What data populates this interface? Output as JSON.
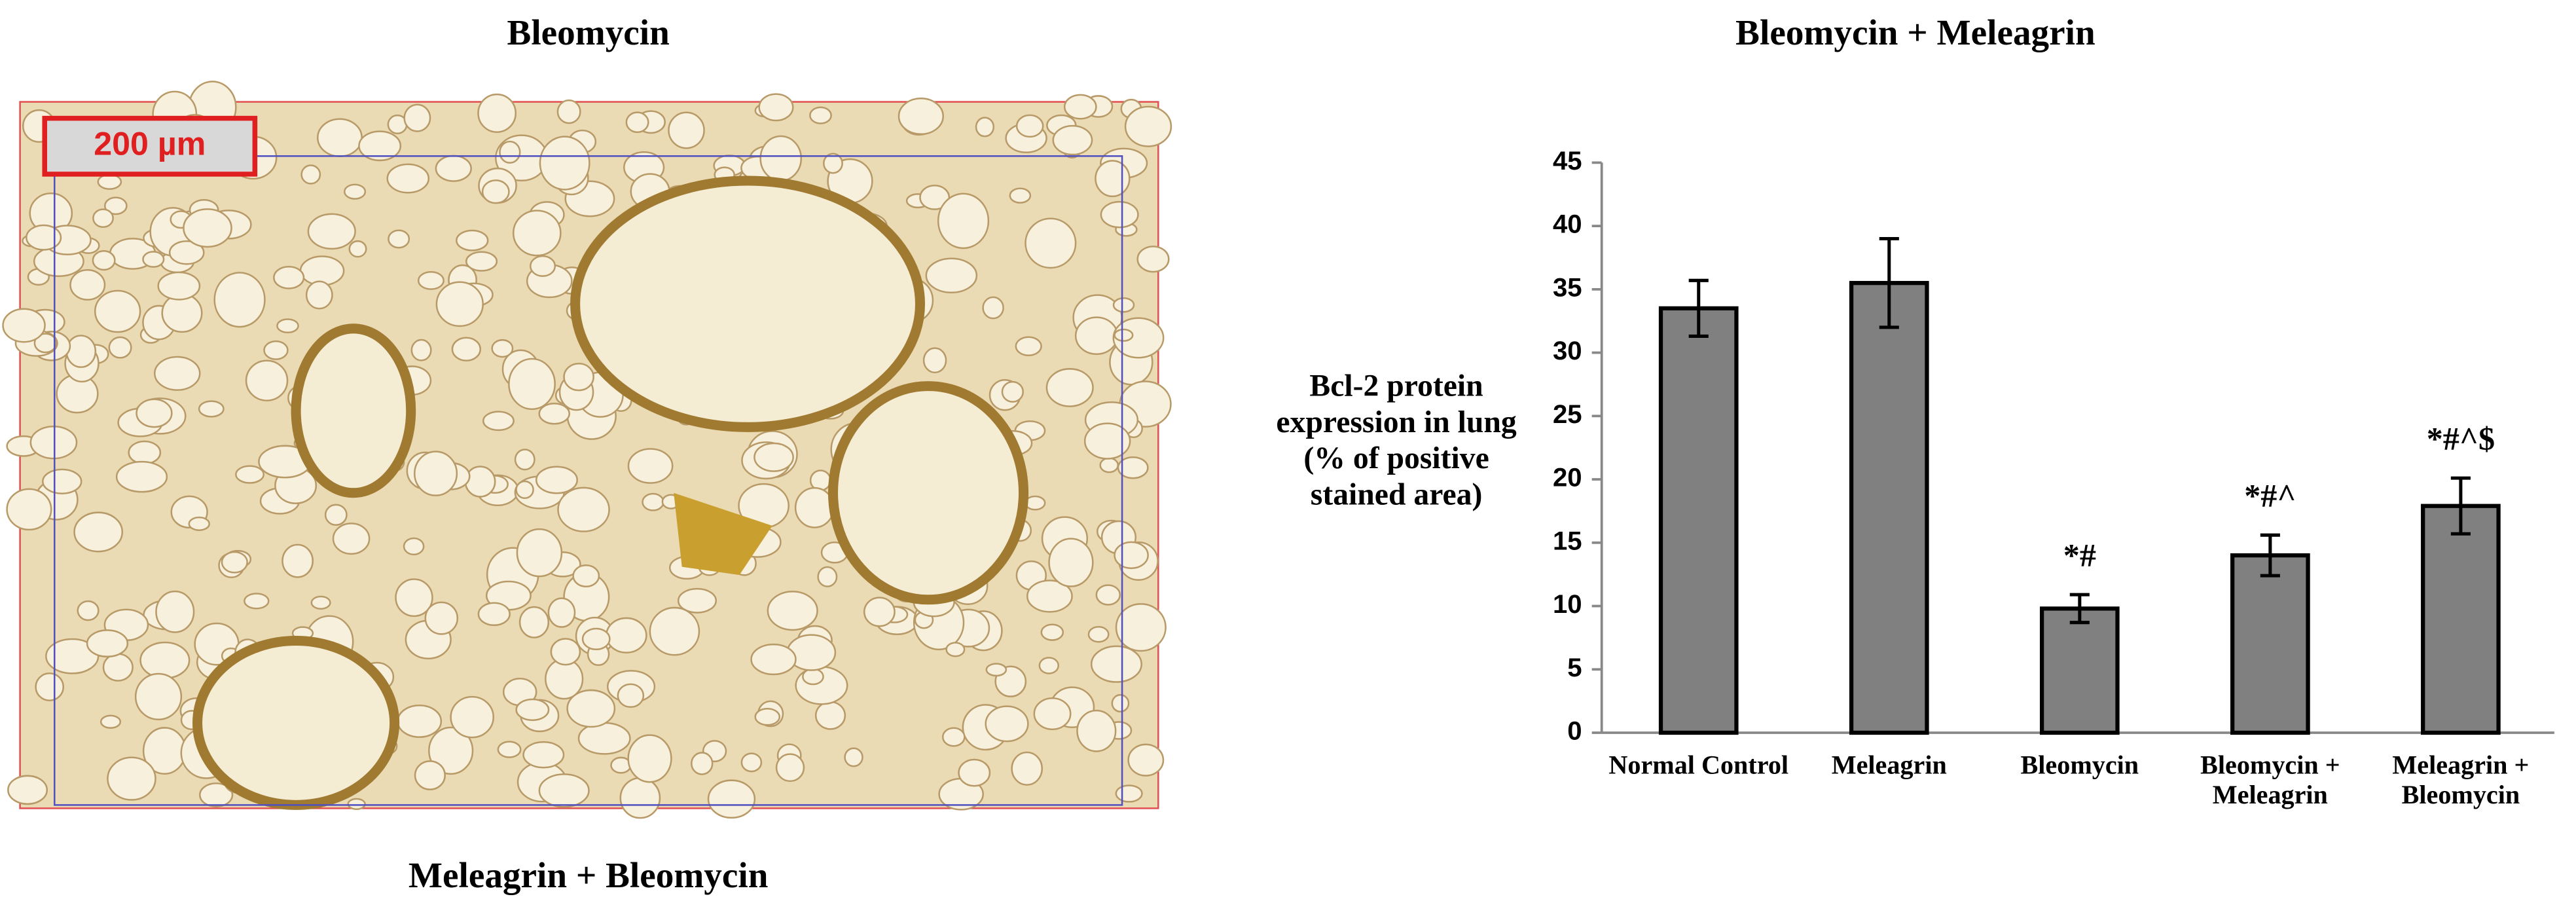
{
  "panels": {
    "top_left_title": "Bleomycin",
    "top_right_title": "Bleomycin + Meleagrin",
    "bottom_left_title": "Meleagrin + Bleomycin",
    "scale_bar": "200 µm"
  },
  "chart_data": {
    "type": "bar",
    "ylabel": "Bcl-2 protein expression in lung (% of positive stained area)",
    "categories": [
      "Normal Control",
      "Meleagrin",
      "Bleomycin",
      "Bleomycin + Meleagrin",
      "Meleagrin + Bleomycin"
    ],
    "values": [
      33.5,
      35.5,
      9.8,
      14,
      17.9
    ],
    "errors": [
      2.2,
      3.5,
      1.1,
      1.6,
      2.2
    ],
    "annotations": [
      null,
      null,
      "*#",
      "*#^",
      "*#^$"
    ],
    "color": "#808080",
    "ylim": [
      0,
      45
    ],
    "yticks": [
      0,
      5,
      10,
      15,
      20,
      25,
      30,
      35,
      40,
      45
    ]
  }
}
